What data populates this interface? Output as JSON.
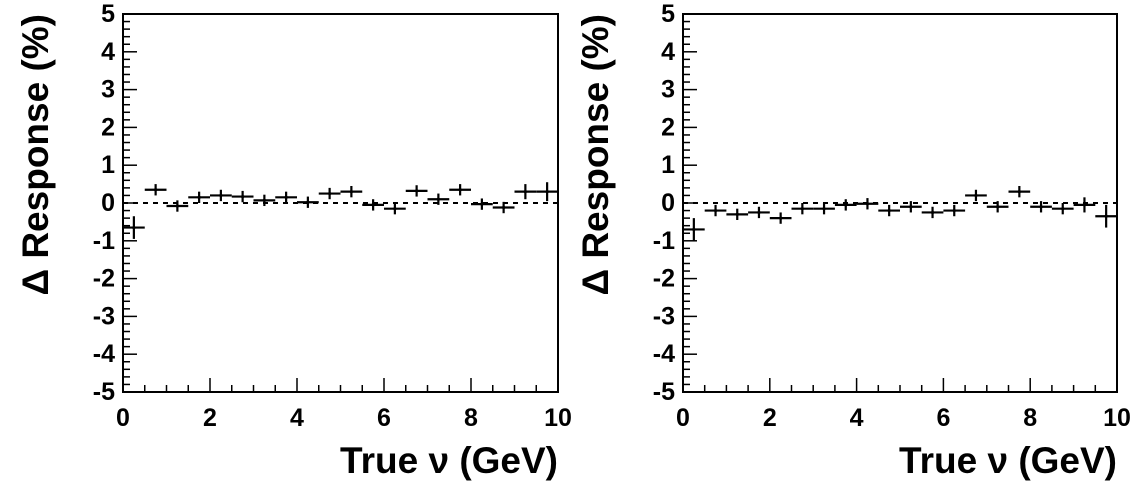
{
  "chart_data": [
    {
      "type": "scatter",
      "xlabel": "True ν (GeV)",
      "ylabel": "Δ Response (%)",
      "xlim": [
        0,
        10
      ],
      "ylim": [
        -5,
        5
      ],
      "x_ticks": [
        "0",
        "2",
        "4",
        "6",
        "8",
        "10"
      ],
      "y_ticks": [
        "5",
        "4",
        "3",
        "2",
        "1",
        "0",
        "-1",
        "-2",
        "-3",
        "-4",
        "-5"
      ],
      "reference_line": 0,
      "x": [
        0.25,
        0.75,
        1.25,
        1.75,
        2.25,
        2.75,
        3.25,
        3.75,
        4.25,
        4.75,
        5.25,
        5.75,
        6.25,
        6.75,
        7.25,
        7.75,
        8.25,
        8.75,
        9.25,
        9.75
      ],
      "values": [
        -0.65,
        0.35,
        -0.08,
        0.15,
        0.2,
        0.17,
        0.07,
        0.15,
        0.02,
        0.25,
        0.3,
        -0.05,
        -0.15,
        0.32,
        0.1,
        0.35,
        -0.03,
        -0.12,
        0.3,
        0.3
      ],
      "y_err": [
        0.3,
        0.15,
        0.15,
        0.15,
        0.15,
        0.15,
        0.15,
        0.15,
        0.15,
        0.15,
        0.15,
        0.15,
        0.15,
        0.15,
        0.15,
        0.15,
        0.15,
        0.15,
        0.2,
        0.25
      ]
    },
    {
      "type": "scatter",
      "xlabel": "True ν (GeV)",
      "ylabel": "Δ Response (%)",
      "xlim": [
        0,
        10
      ],
      "ylim": [
        -5,
        5
      ],
      "x_ticks": [
        "0",
        "2",
        "4",
        "6",
        "8",
        "10"
      ],
      "y_ticks": [
        "5",
        "4",
        "3",
        "2",
        "1",
        "0",
        "-1",
        "-2",
        "-3",
        "-4",
        "-5"
      ],
      "reference_line": 0,
      "x": [
        0.25,
        0.75,
        1.25,
        1.75,
        2.25,
        2.75,
        3.25,
        3.75,
        4.25,
        4.75,
        5.25,
        5.75,
        6.25,
        6.75,
        7.25,
        7.75,
        8.25,
        8.75,
        9.25,
        9.75
      ],
      "values": [
        -0.7,
        -0.2,
        -0.3,
        -0.25,
        -0.4,
        -0.15,
        -0.15,
        -0.05,
        -0.02,
        -0.2,
        -0.1,
        -0.25,
        -0.2,
        0.2,
        -0.1,
        0.3,
        -0.1,
        -0.15,
        -0.05,
        -0.35
      ],
      "y_err": [
        0.3,
        0.15,
        0.15,
        0.15,
        0.15,
        0.15,
        0.15,
        0.15,
        0.15,
        0.15,
        0.15,
        0.15,
        0.15,
        0.15,
        0.15,
        0.15,
        0.15,
        0.15,
        0.2,
        0.3
      ]
    }
  ]
}
